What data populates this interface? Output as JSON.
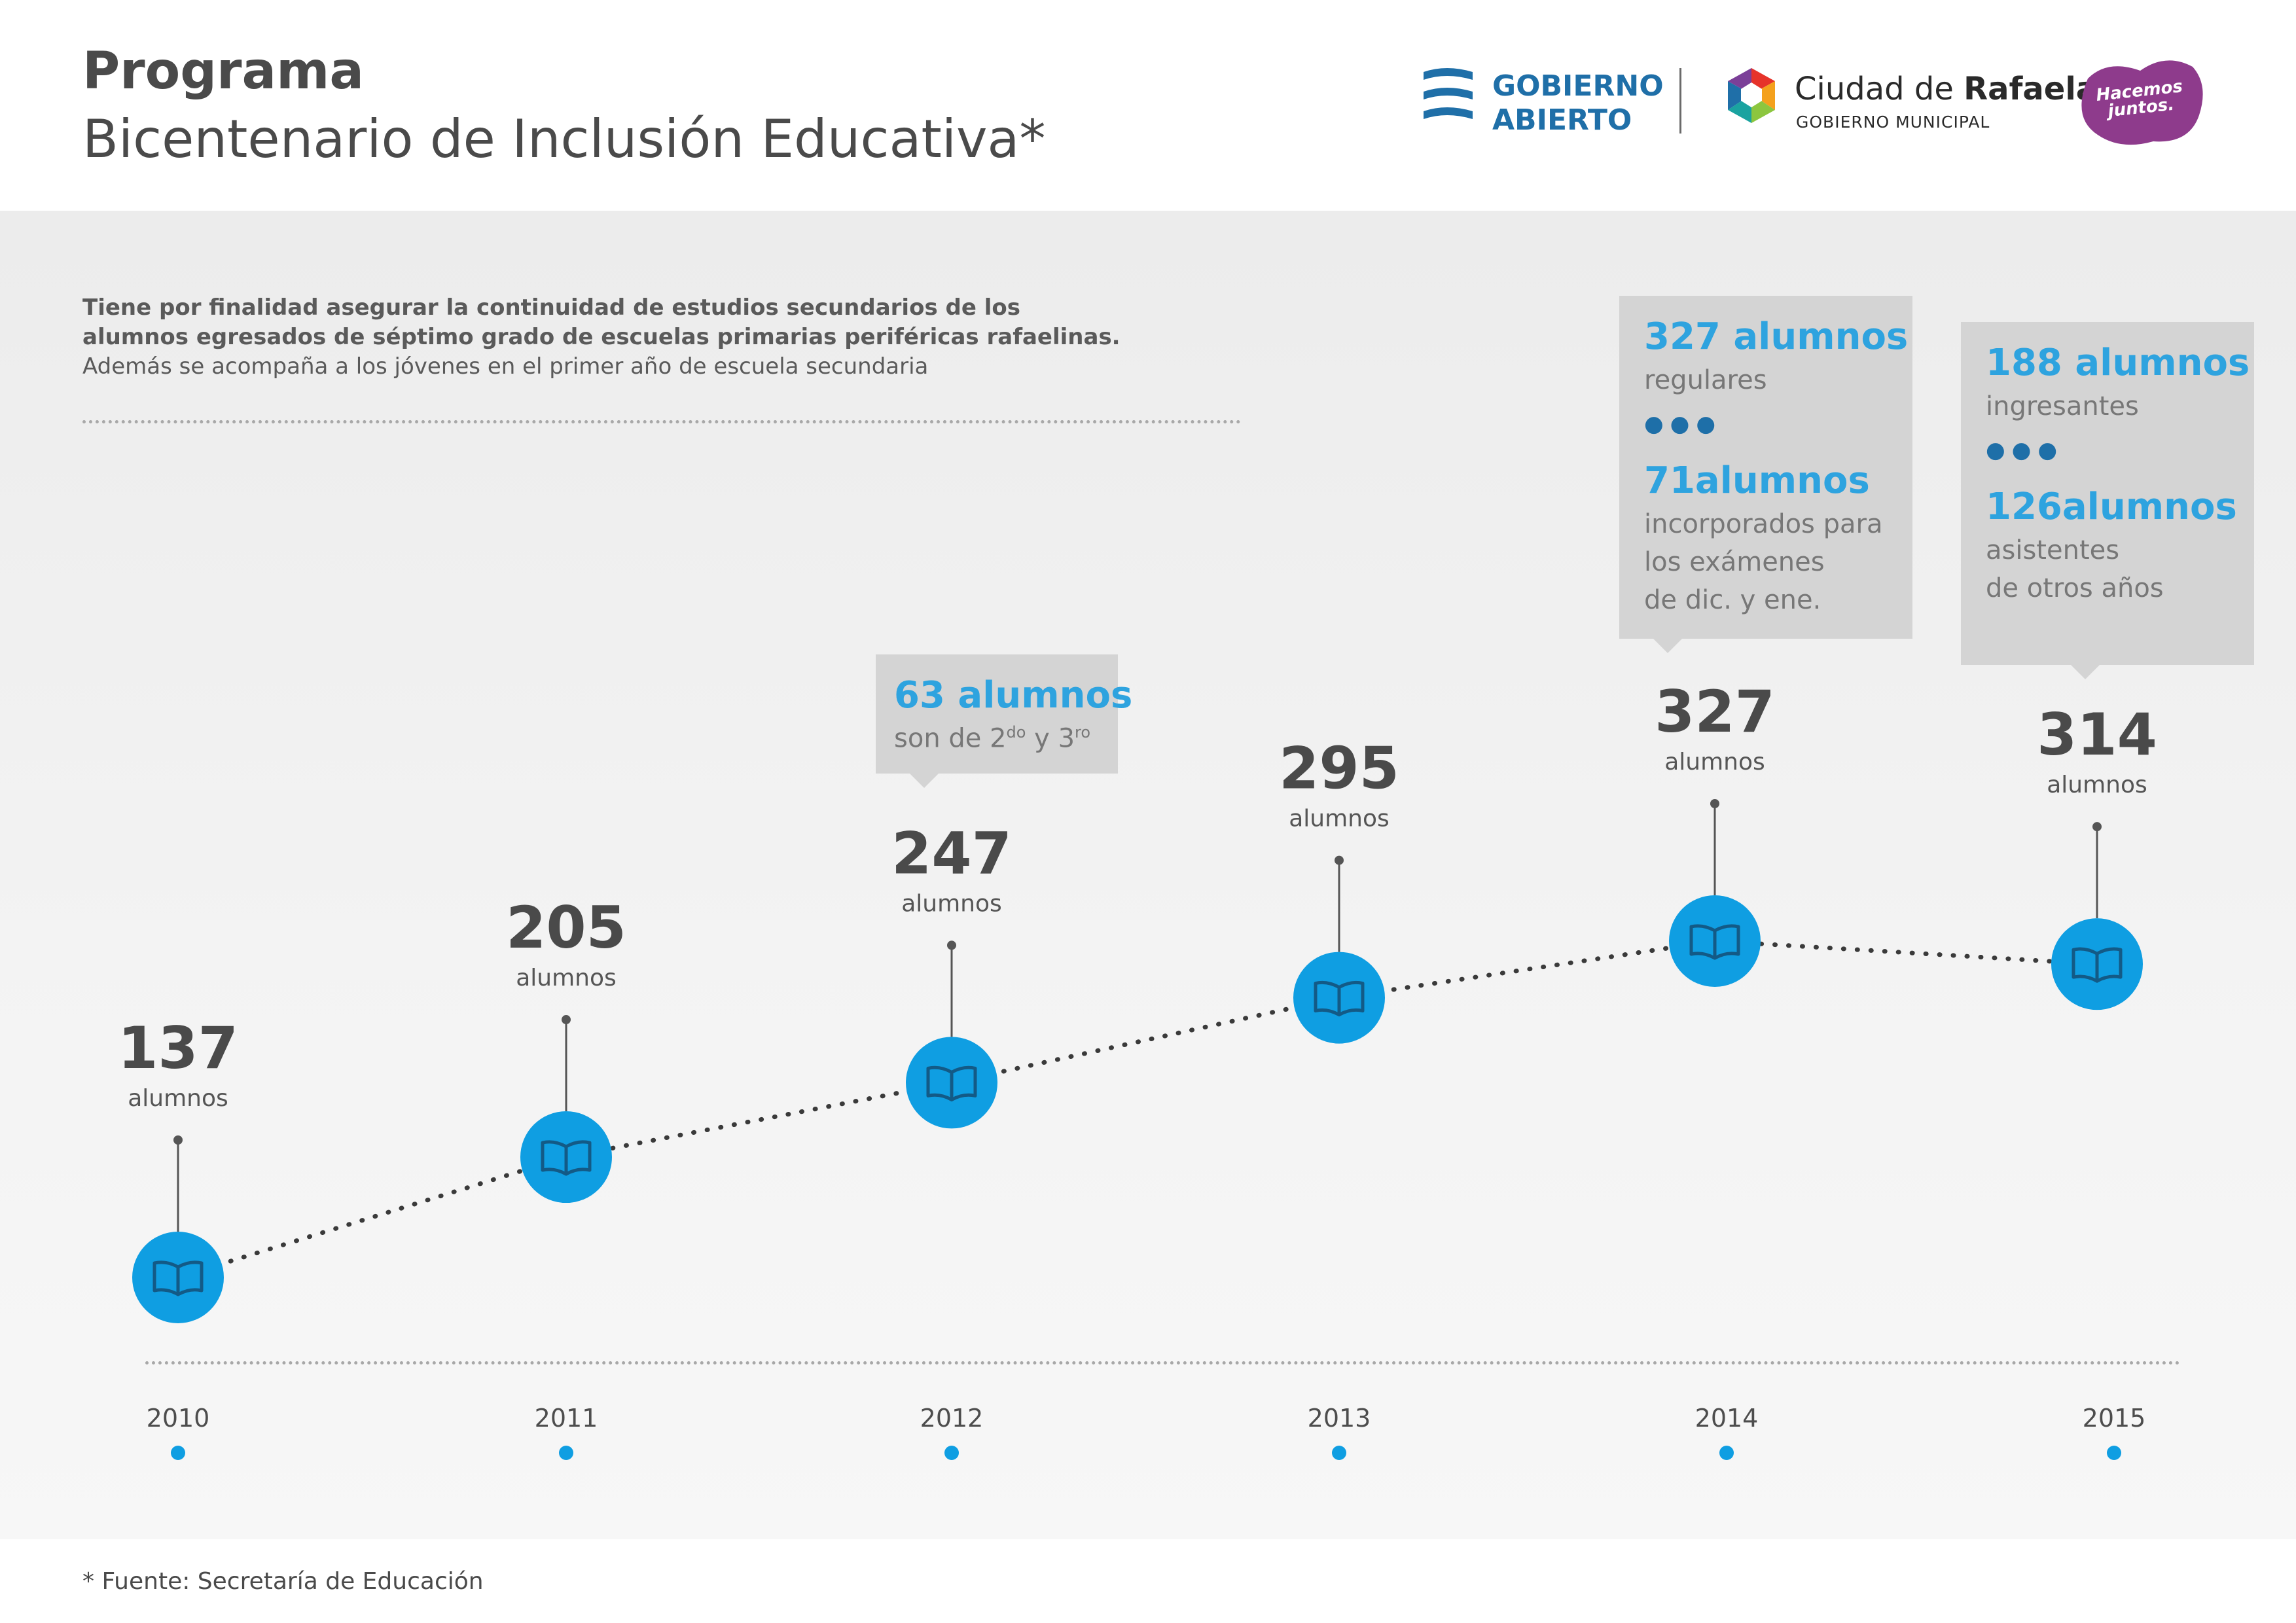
{
  "header": {
    "title_line1": "Programa",
    "title_line2": "Bicentenario de Inclusión Educativa*"
  },
  "logos": {
    "gobierno_abierto": {
      "line1": "GOBIERNO",
      "line2": "ABIERTO"
    },
    "ciudad": {
      "name_regular": "Ciudad de ",
      "name_bold": "Rafaela",
      "subtitle": "GOBIERNO MUNICIPAL"
    },
    "hacemos_juntos": {
      "line1": "Hacemos",
      "line2": "juntos."
    }
  },
  "intro": {
    "line1": "Tiene por finalidad asegurar la continuidad de estudios secundarios de los",
    "line2": "alumnos egresados de séptimo grado de escuelas primarias periféricas rafaelinas.",
    "line3": "Además se acompaña a los jóvenes en el primer año de escuela secundaria"
  },
  "chart_data": {
    "type": "line",
    "x": [
      "2010",
      "2011",
      "2012",
      "2013",
      "2014",
      "2015"
    ],
    "values": [
      137,
      205,
      247,
      295,
      327,
      314
    ],
    "value_unit_label": "alumnos",
    "marker_icon": "open-book-icon",
    "colors": {
      "marker": "#0f9ee2",
      "line": "#3a3a3a",
      "value_text": "#4a4a4a",
      "year_dot": "#0f9ee2",
      "year_text": "#4d4d4d"
    }
  },
  "callouts": {
    "c2012": {
      "headline": "63 alumnos",
      "text_a": "son de 2",
      "sup_a": "do",
      "text_b": " y 3",
      "sup_b": "ro"
    },
    "c2014": {
      "headline1": "327 alumnos",
      "text1": "regulares",
      "dots": "●●●",
      "headline2": "71alumnos",
      "text2a": "incorporados para",
      "text2b": "los exámenes",
      "text2c": "de dic. y ene."
    },
    "c2015": {
      "headline1": "188 alumnos",
      "text1": "ingresantes",
      "dots": "●●●",
      "headline2": "126alumnos",
      "text2a": "asistentes",
      "text2b": "de otros años"
    }
  },
  "footer": {
    "source": "* Fuente: Secretaría de Educación"
  }
}
